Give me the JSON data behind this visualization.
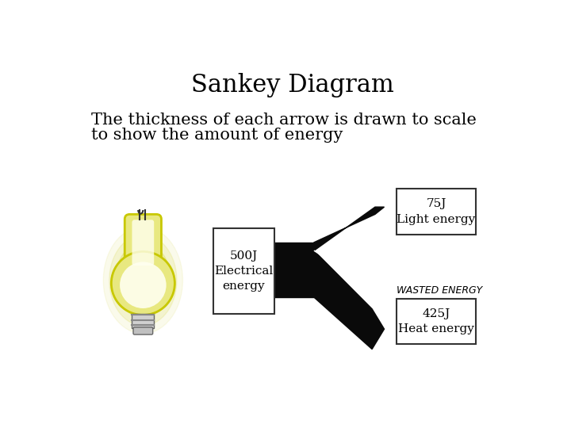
{
  "title": "Sankey Diagram",
  "subtitle_line1": "The thickness of each arrow is drawn to scale",
  "subtitle_line2": "to show the amount of energy",
  "bg_color": "#ffffff",
  "title_fontsize": 22,
  "subtitle_fontsize": 15,
  "input_label": "500J\nElectrical\nenergy",
  "output1_label": "75J\nLight energy",
  "output2_label": "425J\nHeat energy",
  "wasted_label": "WASTED ENERGY",
  "arrow_color": "#0a0a0a",
  "box_edgecolor": "#333333",
  "box_facecolor": "#ffffff",
  "text_fontsize": 11,
  "wasted_fontsize": 9,
  "bulb_glow_color": "#c8c800",
  "bulb_body_color": "#e8e880",
  "bulb_inner_color": "#fffff0"
}
